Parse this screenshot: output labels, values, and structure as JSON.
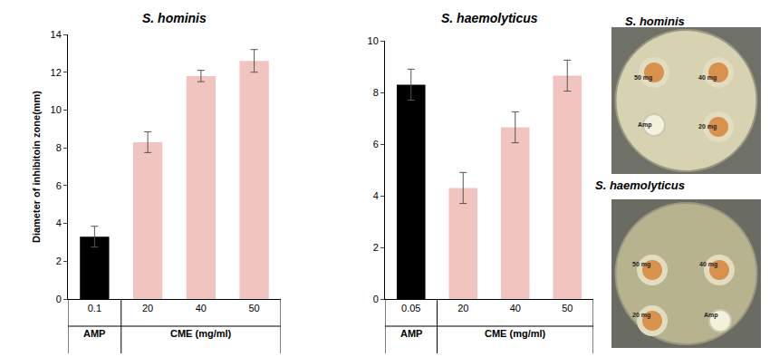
{
  "chart_data": [
    {
      "type": "bar",
      "title": "S. hominis",
      "ylabel": "Diameter of inhibitoin zone(mm)",
      "categories": [
        "0.1",
        "20",
        "40",
        "50"
      ],
      "values": [
        3.3,
        8.3,
        11.8,
        12.6
      ],
      "errors": [
        0.55,
        0.55,
        0.3,
        0.6
      ],
      "colors": [
        "#000000",
        "#f2c4c0",
        "#f2c4c0",
        "#f2c4c0"
      ],
      "ylim": [
        0,
        14
      ],
      "yticks": [
        0,
        2,
        4,
        6,
        8,
        10,
        12,
        14
      ],
      "annotations": [
        {
          "text": "AMP",
          "category": 0
        },
        {
          "text": "CME (mg/ml)",
          "category": 2
        }
      ]
    },
    {
      "type": "bar",
      "title": "S. haemolyticus",
      "categories": [
        "0.05",
        "20",
        "40",
        "50"
      ],
      "values": [
        8.3,
        4.3,
        6.65,
        8.65
      ],
      "errors": [
        0.6,
        0.6,
        0.6,
        0.6
      ],
      "colors": [
        "#000000",
        "#f2c4c0",
        "#f2c4c0",
        "#f2c4c0"
      ],
      "ylim": [
        0,
        10
      ],
      "yticks": [
        0,
        2,
        4,
        6,
        8,
        10
      ],
      "annotations": [
        {
          "text": "AMP",
          "category": 0
        },
        {
          "text": "CME (mg/ml)",
          "category": 2
        }
      ]
    }
  ],
  "plates": [
    {
      "title": "S. hominis",
      "discs": [
        "50 mg",
        "40 mg",
        "Amp",
        "20 mg"
      ]
    },
    {
      "title": "S. haemolyticus",
      "discs": [
        "50 mg",
        "40 mg",
        "20 mg",
        "Amp"
      ]
    }
  ]
}
